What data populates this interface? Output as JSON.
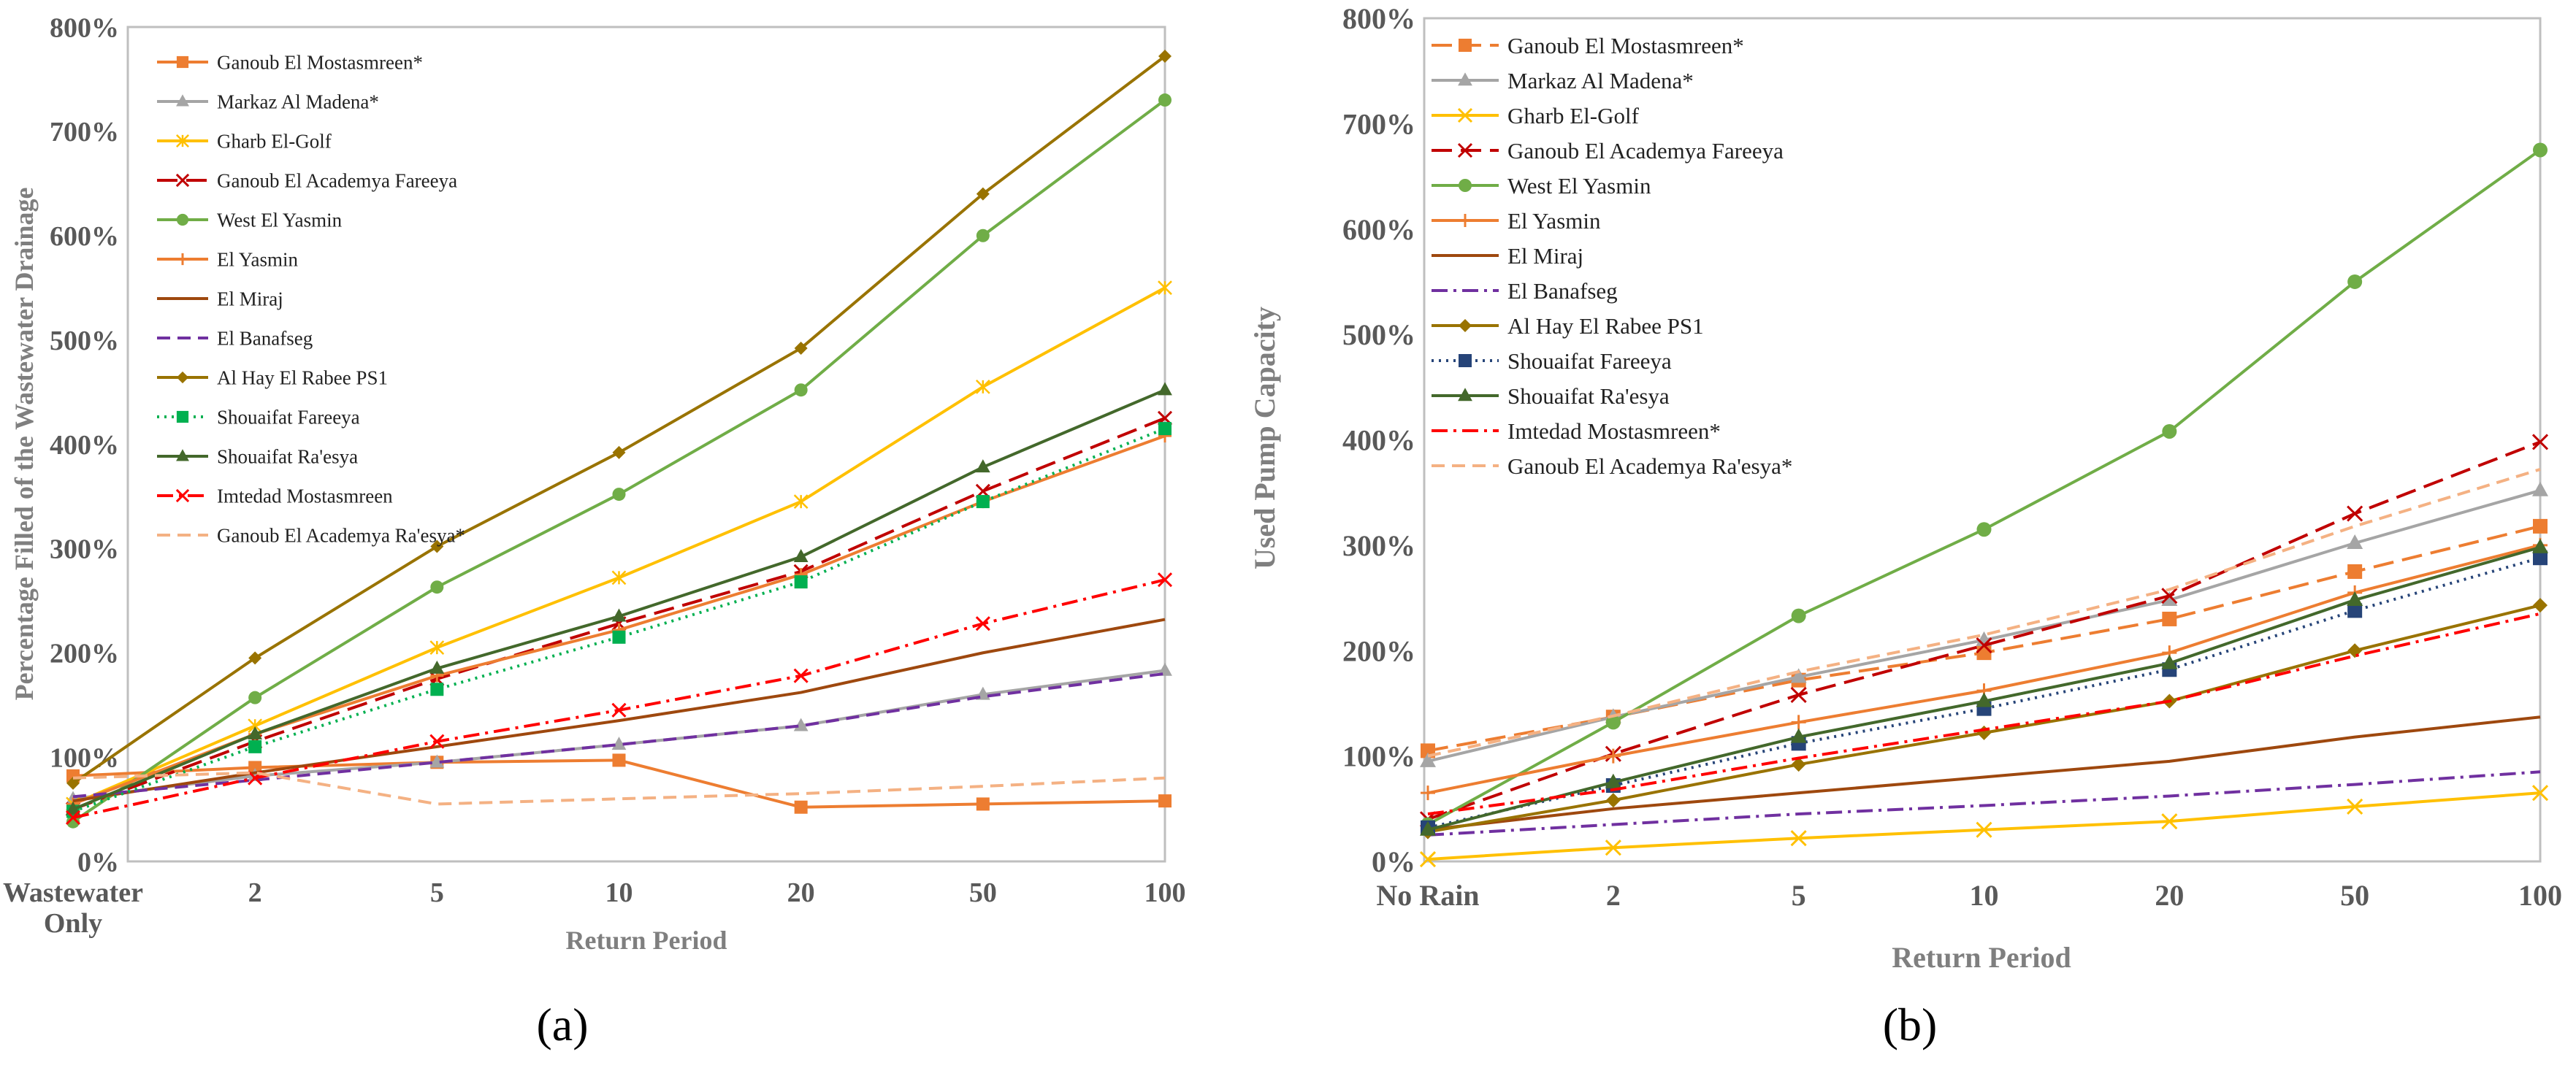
{
  "colors": {
    "ganoub_mostasmreen": "#ED7D31",
    "markaz": "#A5A5A5",
    "gharb": "#FFC000",
    "ganoub_academya_fareeya": "#C00000",
    "west_yasmin": "#70AD47",
    "el_yasmin": "#ED7D31",
    "el_miraj": "#9E480E",
    "el_banafseg": "#7030A0",
    "al_hay": "#997300",
    "shouaifat_fareeya_a": "#00B050",
    "shouaifat_fareeya_b": "#264478",
    "shouaifat_raesya": "#43682B",
    "imtedad": "#FF0000",
    "ganoub_academya_raesya": "#F4B183"
  },
  "chart_data": [
    {
      "panel_label": "(a)",
      "type": "line",
      "title": "",
      "xlabel": "Return Period",
      "ylabel": "Percentage Filled of the Wastewater Drainage",
      "categories": [
        "Wastewater Only",
        "2",
        "5",
        "10",
        "20",
        "50",
        "100"
      ],
      "category_lines": [
        [
          "Wastewater",
          "Only"
        ],
        [
          "2"
        ],
        [
          "5"
        ],
        [
          "10"
        ],
        [
          "20"
        ],
        [
          "50"
        ],
        [
          "100"
        ]
      ],
      "ylim": [
        0,
        800
      ],
      "yticks": [
        0,
        100,
        200,
        300,
        400,
        500,
        600,
        700,
        800
      ],
      "ytick_labels": [
        "0%",
        "100%",
        "200%",
        "300%",
        "400%",
        "500%",
        "600%",
        "700%",
        "800%"
      ],
      "legend_position": "top-left",
      "series": [
        {
          "name": "Ganoub El Mostasmreen*",
          "color_key": "ganoub_mostasmreen",
          "dash": "solid",
          "marker": "square",
          "values": [
            82,
            90,
            95,
            97,
            52,
            55,
            58
          ]
        },
        {
          "name": "Markaz Al Madena*",
          "color_key": "markaz",
          "dash": "solid",
          "marker": "triangle",
          "values": [
            60,
            82,
            95,
            112,
            130,
            160,
            183
          ]
        },
        {
          "name": "Gharb El-Golf",
          "color_key": "gharb",
          "dash": "solid",
          "marker": "cross",
          "values": [
            55,
            130,
            205,
            272,
            345,
            455,
            550
          ]
        },
        {
          "name": "Ganoub El Academya Fareeya",
          "color_key": "ganoub_academya_fareeya",
          "dash": "longdash",
          "marker": "x",
          "values": [
            50,
            115,
            175,
            228,
            278,
            355,
            425
          ]
        },
        {
          "name": "West El Yasmin",
          "color_key": "west_yasmin",
          "dash": "solid",
          "marker": "circle",
          "values": [
            38,
            157,
            263,
            352,
            452,
            600,
            730
          ]
        },
        {
          "name": "El Yasmin",
          "color_key": "el_yasmin",
          "dash": "solid",
          "marker": "plus",
          "values": [
            55,
            122,
            178,
            222,
            275,
            345,
            408
          ]
        },
        {
          "name": "El Miraj",
          "color_key": "el_miraj",
          "dash": "solid",
          "marker": "none",
          "values": [
            58,
            85,
            110,
            135,
            162,
            200,
            232
          ]
        },
        {
          "name": "El Banafseg",
          "color_key": "el_banafseg",
          "dash": "dash",
          "marker": "none",
          "values": [
            62,
            78,
            95,
            112,
            130,
            158,
            180
          ]
        },
        {
          "name": "Al Hay El Rabee PS1",
          "color_key": "al_hay",
          "dash": "solid",
          "marker": "diamond",
          "values": [
            75,
            195,
            302,
            392,
            492,
            640,
            772
          ]
        },
        {
          "name": "Shouaifat Fareeya",
          "color_key": "shouaifat_fareeya_a",
          "dash": "dot",
          "marker": "square",
          "values": [
            48,
            110,
            165,
            215,
            268,
            345,
            415
          ]
        },
        {
          "name": "Shouaifat Ra'esya",
          "color_key": "shouaifat_raesya",
          "dash": "solid",
          "marker": "triangle",
          "values": [
            50,
            122,
            185,
            235,
            292,
            378,
            452
          ]
        },
        {
          "name": "Imtedad Mostasmreen",
          "color_key": "imtedad",
          "dash": "dashdot",
          "marker": "x",
          "values": [
            42,
            80,
            115,
            145,
            178,
            228,
            270
          ]
        },
        {
          "name": "Ganoub El Academya Ra'esya*",
          "color_key": "ganoub_academya_raesya",
          "dash": "dash",
          "marker": "none",
          "values": [
            80,
            85,
            55,
            60,
            65,
            72,
            80
          ]
        }
      ]
    },
    {
      "panel_label": "(b)",
      "type": "line",
      "title": "",
      "xlabel": "Return Period",
      "ylabel": "Used Pump Capacity",
      "categories": [
        "No Rain",
        "2",
        "5",
        "10",
        "20",
        "50",
        "100"
      ],
      "category_lines": [
        [
          "No Rain"
        ],
        [
          "2"
        ],
        [
          "5"
        ],
        [
          "10"
        ],
        [
          "20"
        ],
        [
          "50"
        ],
        [
          "100"
        ]
      ],
      "ylim": [
        0,
        800
      ],
      "yticks": [
        0,
        100,
        200,
        300,
        400,
        500,
        600,
        700,
        800
      ],
      "ytick_labels": [
        "0%",
        "100%",
        "200%",
        "300%",
        "400%",
        "500%",
        "600%",
        "700%",
        "800%"
      ],
      "legend_position": "top-left",
      "series": [
        {
          "name": "Ganoub El Mostasmreen*",
          "color_key": "ganoub_mostasmreen",
          "dash": "longdash",
          "marker": "square",
          "values": [
            105,
            137,
            172,
            198,
            230,
            275,
            318
          ]
        },
        {
          "name": "Markaz Al Madena*",
          "color_key": "markaz",
          "dash": "solid",
          "marker": "triangle",
          "values": [
            95,
            137,
            175,
            210,
            248,
            302,
            352
          ]
        },
        {
          "name": "Gharb El-Golf",
          "color_key": "gharb",
          "dash": "solid",
          "marker": "x",
          "values": [
            2,
            13,
            22,
            30,
            38,
            52,
            65
          ]
        },
        {
          "name": "Ganoub El Academya Fareeya",
          "color_key": "ganoub_academya_fareeya",
          "dash": "longdash",
          "marker": "x",
          "values": [
            40,
            102,
            158,
            205,
            252,
            330,
            398
          ]
        },
        {
          "name": "West El Yasmin",
          "color_key": "west_yasmin",
          "dash": "solid",
          "marker": "circle",
          "values": [
            35,
            132,
            233,
            315,
            408,
            550,
            675
          ]
        },
        {
          "name": "El Yasmin",
          "color_key": "el_yasmin",
          "dash": "solid",
          "marker": "plus",
          "values": [
            65,
            100,
            132,
            162,
            198,
            255,
            300
          ]
        },
        {
          "name": "El Miraj",
          "color_key": "el_miraj",
          "dash": "solid",
          "marker": "none",
          "values": [
            30,
            50,
            65,
            80,
            95,
            118,
            137
          ]
        },
        {
          "name": "El Banafseg",
          "color_key": "el_banafseg",
          "dash": "dashdot",
          "marker": "none",
          "values": [
            25,
            35,
            45,
            53,
            62,
            73,
            85
          ]
        },
        {
          "name": "Al Hay El Rabee PS1",
          "color_key": "al_hay",
          "dash": "solid",
          "marker": "diamond",
          "values": [
            28,
            58,
            92,
            122,
            152,
            200,
            243
          ]
        },
        {
          "name": "Shouaifat Fareeya",
          "color_key": "shouaifat_fareeya_b",
          "dash": "dot",
          "marker": "square",
          "values": [
            32,
            72,
            112,
            145,
            182,
            238,
            288
          ]
        },
        {
          "name": "Shouaifat Ra'esya",
          "color_key": "shouaifat_raesya",
          "dash": "solid",
          "marker": "triangle",
          "values": [
            30,
            75,
            118,
            152,
            188,
            248,
            298
          ]
        },
        {
          "name": "Imtedad Mostasmreen*",
          "color_key": "imtedad",
          "dash": "dashdot",
          "marker": "none",
          "values": [
            45,
            68,
            98,
            125,
            152,
            195,
            235
          ]
        },
        {
          "name": "Ganoub El Academya Ra'esya*",
          "color_key": "ganoub_academya_raesya",
          "dash": "dash",
          "marker": "none",
          "values": [
            100,
            138,
            180,
            215,
            258,
            318,
            372
          ]
        }
      ]
    }
  ]
}
